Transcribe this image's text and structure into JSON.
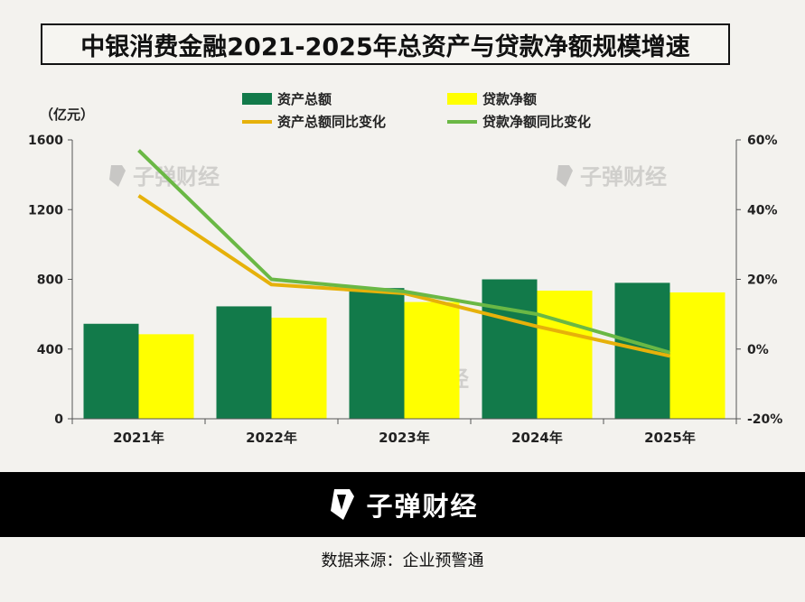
{
  "title": "中银消费金融2021-2025年总资产与贷款净额规模增速",
  "unit_label": "（亿元）",
  "legend": [
    {
      "label": "资产总额",
      "kind": "bar",
      "color": "#127a4a"
    },
    {
      "label": "贷款净额",
      "kind": "bar",
      "color": "#ffff00"
    },
    {
      "label": "资产总额同比变化",
      "kind": "line",
      "color": "#e6b10a"
    },
    {
      "label": "贷款净额同比变化",
      "kind": "line",
      "color": "#6ab845"
    }
  ],
  "watermark_text": "子弹财经",
  "footer": {
    "brand": "子弹财经"
  },
  "source": "数据来源：企业预警通",
  "chart_data": {
    "type": "bar",
    "categories": [
      "2021年",
      "2022年",
      "2023年",
      "2024年",
      "2025年"
    ],
    "series": [
      {
        "name": "资产总额",
        "type": "bar",
        "axis": "left",
        "color": "#127a4a",
        "values": [
          545,
          645,
          750,
          800,
          780
        ]
      },
      {
        "name": "贷款净额",
        "type": "bar",
        "axis": "left",
        "color": "#ffff00",
        "values": [
          485,
          580,
          670,
          735,
          725
        ]
      },
      {
        "name": "资产总额同比变化",
        "type": "line",
        "axis": "right",
        "color": "#e6b10a",
        "values": [
          44,
          18.5,
          16,
          6.5,
          -2
        ]
      },
      {
        "name": "贷款净额同比变化",
        "type": "line",
        "axis": "right",
        "color": "#6ab845",
        "values": [
          57,
          20,
          16.5,
          10,
          -1
        ]
      }
    ],
    "ylim": [
      0,
      1600
    ],
    "yticks": [
      0,
      400,
      800,
      1200,
      1600
    ],
    "y2lim": [
      -20,
      60
    ],
    "y2ticks": [
      "-20%",
      "0%",
      "20%",
      "40%",
      "60%"
    ],
    "grid": false,
    "legend_position": "top"
  }
}
